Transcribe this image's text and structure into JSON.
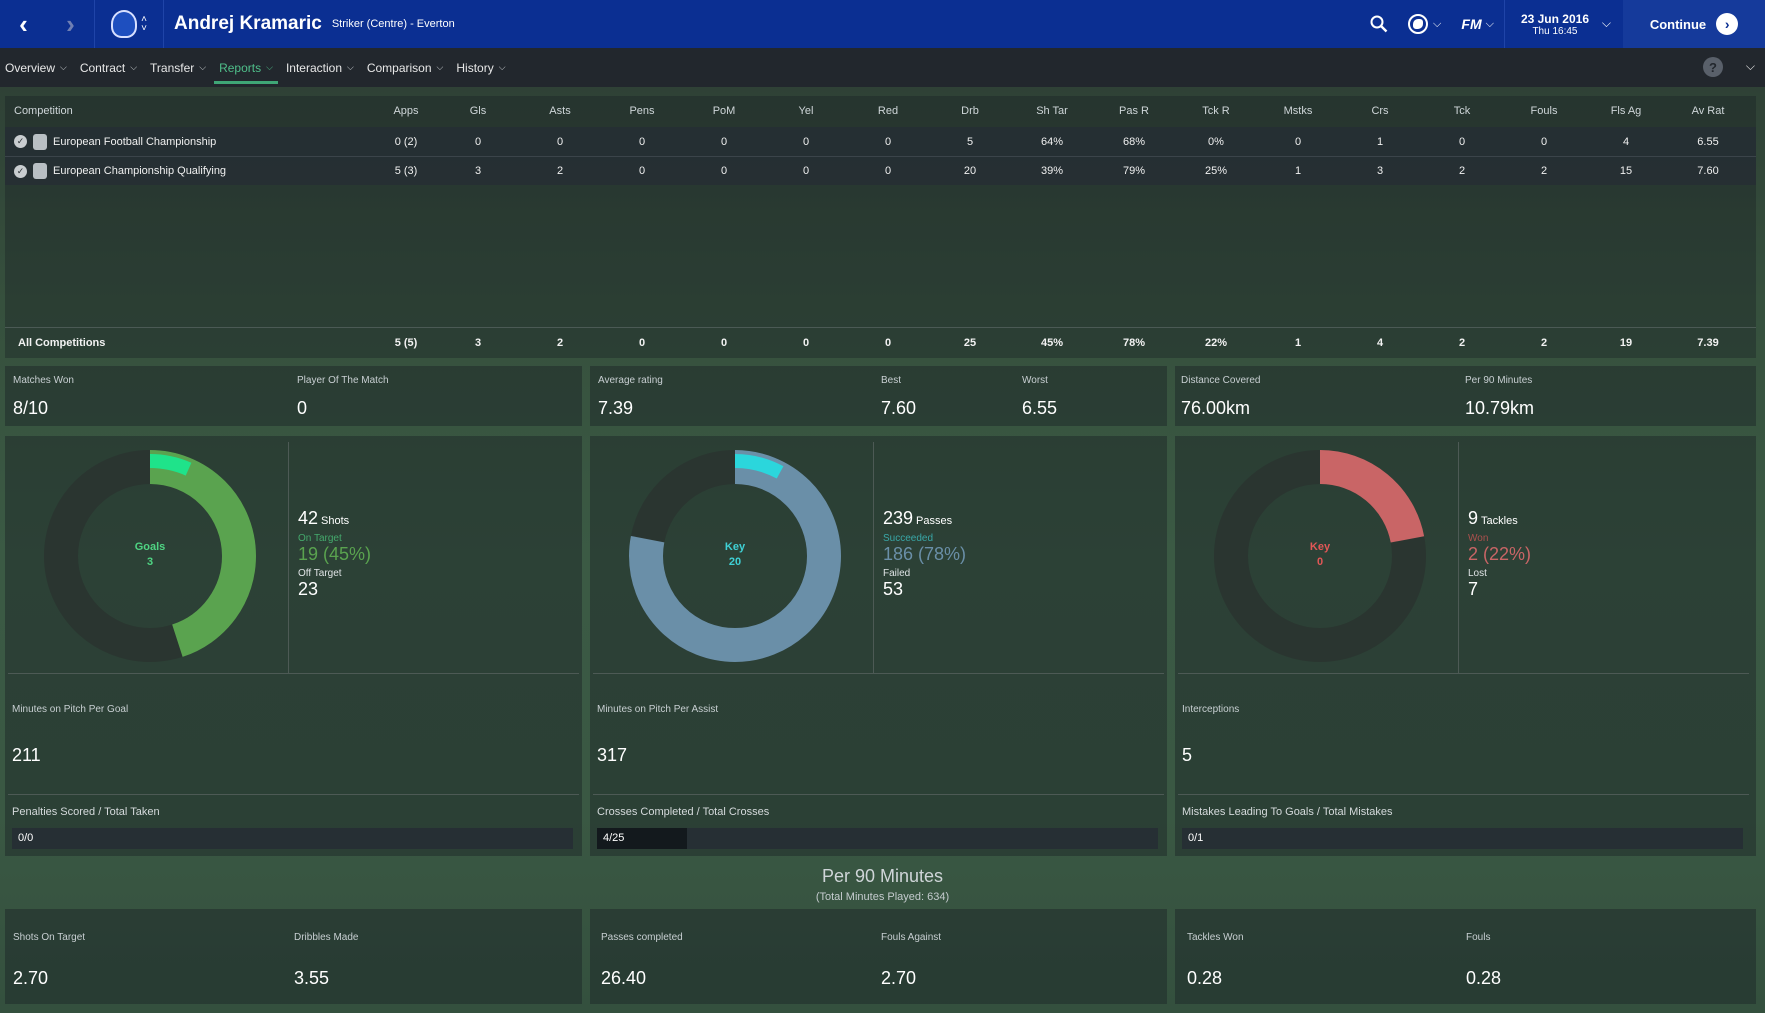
{
  "header": {
    "player_name": "Andrej Kramaric",
    "player_sub": "Striker (Centre) - Everton",
    "date": "23 Jun 2016",
    "time": "Thu 16:45",
    "continue_label": "Continue",
    "icons": [
      "back-arrow-icon",
      "forward-arrow-icon",
      "club-crest-icon",
      "search-icon",
      "globe-icon",
      "fm-logo-icon",
      "chevron-down-icon",
      "continue-arrow-icon"
    ]
  },
  "nav": {
    "tabs": [
      {
        "label": "Overview"
      },
      {
        "label": "Contract"
      },
      {
        "label": "Transfer"
      },
      {
        "label": "Reports"
      },
      {
        "label": "Interaction"
      },
      {
        "label": "Comparison"
      },
      {
        "label": "History"
      }
    ],
    "active_tab": "Reports",
    "help_label": "?"
  },
  "table": {
    "headers": [
      "Competition",
      "Apps",
      "Gls",
      "Asts",
      "Pens",
      "PoM",
      "Yel",
      "Red",
      "Drb",
      "Sh Tar",
      "Pas R",
      "Tck R",
      "Mstks",
      "Crs",
      "Tck",
      "Fouls",
      "Fls Ag",
      "Av Rat"
    ],
    "rows": [
      {
        "name": "European Football Championship",
        "values": [
          "0 (2)",
          "0",
          "0",
          "0",
          "0",
          "0",
          "0",
          "5",
          "64%",
          "68%",
          "0%",
          "0",
          "1",
          "0",
          "0",
          "4",
          "6.55"
        ]
      },
      {
        "name": "European Championship Qualifying",
        "values": [
          "5 (3)",
          "3",
          "2",
          "0",
          "0",
          "0",
          "0",
          "20",
          "39%",
          "79%",
          "25%",
          "1",
          "3",
          "2",
          "2",
          "15",
          "7.60"
        ]
      }
    ],
    "total": {
      "name": "All Competitions",
      "values": [
        "5 (5)",
        "3",
        "2",
        "0",
        "0",
        "0",
        "0",
        "25",
        "45%",
        "78%",
        "22%",
        "1",
        "4",
        "2",
        "2",
        "19",
        "7.39"
      ]
    }
  },
  "summary": {
    "matches_won": {
      "label": "Matches Won",
      "value": "8/10"
    },
    "pom": {
      "label": "Player Of The Match",
      "value": "0"
    },
    "avg_rating": {
      "label": "Average rating",
      "value": "7.39"
    },
    "best": {
      "label": "Best",
      "value": "7.60"
    },
    "worst": {
      "label": "Worst",
      "value": "6.55"
    },
    "distance": {
      "label": "Distance Covered",
      "value": "76.00km"
    },
    "per90dist": {
      "label": "Per 90 Minutes",
      "value": "10.79km"
    }
  },
  "panels": [
    {
      "ring_title": "Goals",
      "ring_value": "3",
      "main_value": "42",
      "main_label": "Shots",
      "sub1_label": "On Target",
      "sub1_value": "19 (45%)",
      "sub2_label": "Off Target",
      "sub2_value": "23",
      "ring_color": "#5aa34f",
      "highlight_color": "#1fe38a",
      "text_color": "#4fd483",
      "main_fraction": 0.45,
      "highlight_fraction": 0.071,
      "mid_label": "Minutes on Pitch Per Goal",
      "mid_value": "211",
      "bar_label": "Penalties Scored / Total Taken",
      "bar_value": "0/0",
      "bar_fraction": 0
    },
    {
      "ring_title": "Key",
      "ring_value": "20",
      "main_value": "239",
      "main_label": "Passes",
      "sub1_label": "Succeeded",
      "sub1_value": "186 (78%)",
      "sub2_label": "Failed",
      "sub2_value": "53",
      "ring_color": "#6a8fa8",
      "highlight_color": "#2bd6dc",
      "text_color": "#3fd1d6",
      "main_fraction": 0.78,
      "highlight_fraction": 0.084,
      "mid_label": "Minutes on Pitch Per Assist",
      "mid_value": "317",
      "bar_label": "Crosses Completed / Total Crosses",
      "bar_value": "4/25",
      "bar_fraction": 0.16
    },
    {
      "ring_title": "Key",
      "ring_value": "0",
      "main_value": "9",
      "main_label": "Tackles",
      "sub1_label": "Won",
      "sub1_value": "2 (22%)",
      "sub2_label": "Lost",
      "sub2_value": "7",
      "ring_color": "#c96566",
      "highlight_color": "#e04a4a",
      "text_color": "#e35757",
      "main_fraction": 0.22,
      "highlight_fraction": 0,
      "mid_label": "Interceptions",
      "mid_value": "5",
      "bar_label": "Mistakes Leading To Goals / Total Mistakes",
      "bar_value": "0/1",
      "bar_fraction": 0
    }
  ],
  "per90": {
    "title": "Per 90 Minutes",
    "subtitle": "(Total Minutes Played: 634)",
    "stats": [
      {
        "label": "Shots On Target",
        "value": "2.70"
      },
      {
        "label": "Dribbles Made",
        "value": "3.55"
      },
      {
        "label": "Passes completed",
        "value": "26.40"
      },
      {
        "label": "Fouls Against",
        "value": "2.70"
      },
      {
        "label": "Tackles Won",
        "value": "0.28"
      },
      {
        "label": "Fouls",
        "value": "0.28"
      }
    ]
  }
}
